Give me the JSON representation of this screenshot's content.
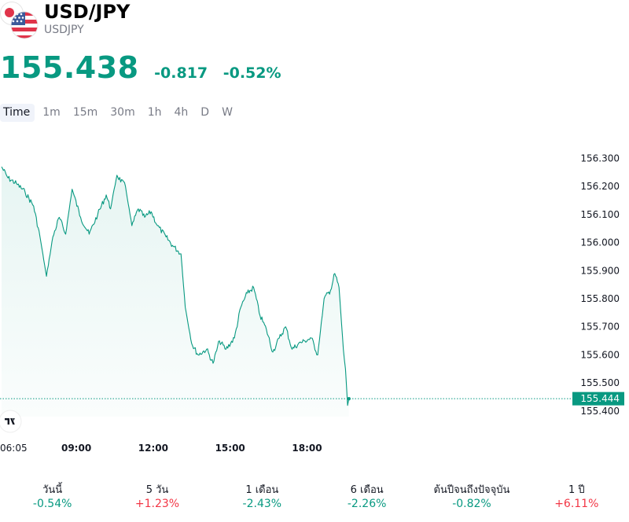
{
  "header": {
    "title": "USD/JPY",
    "symbol": "USDJPY",
    "price": "155.438",
    "change": "-0.817",
    "change_percent": "-0.52%"
  },
  "colors": {
    "accent_green": "#089981",
    "negative_red": "#f23645",
    "text": "#131722",
    "muted": "#787b86"
  },
  "tabs": [
    {
      "label": "Time",
      "active": true
    },
    {
      "label": "1m"
    },
    {
      "label": "15m"
    },
    {
      "label": "30m"
    },
    {
      "label": "1h"
    },
    {
      "label": "4h"
    },
    {
      "label": "D"
    },
    {
      "label": "W"
    }
  ],
  "chart_data": {
    "type": "area",
    "x_ticks": [
      "06:05",
      "09:00",
      "12:00",
      "15:00",
      "18:00"
    ],
    "y_ticks": [
      "156.300",
      "156.200",
      "156.100",
      "156.000",
      "155.900",
      "155.800",
      "155.700",
      "155.600",
      "155.500",
      "155.400"
    ],
    "ylim": [
      155.38,
      156.36
    ],
    "current_price_label": "155.444",
    "current_price": 155.444,
    "time_range": [
      "06:05",
      "20:30"
    ],
    "line_color": "#089981",
    "grid": false,
    "series": [
      {
        "points": [
          [
            "06:05",
            156.27
          ],
          [
            "06:20",
            156.23
          ],
          [
            "06:40",
            156.21
          ],
          [
            "07:00",
            156.18
          ],
          [
            "07:20",
            156.13
          ],
          [
            "07:35",
            156.02
          ],
          [
            "07:50",
            155.88
          ],
          [
            "08:05",
            156.02
          ],
          [
            "08:20",
            156.09
          ],
          [
            "08:35",
            156.03
          ],
          [
            "08:50",
            156.19
          ],
          [
            "09:10",
            156.09
          ],
          [
            "09:30",
            156.03
          ],
          [
            "09:50",
            156.1
          ],
          [
            "10:10",
            156.17
          ],
          [
            "10:20",
            156.12
          ],
          [
            "10:35",
            156.24
          ],
          [
            "10:55",
            156.2
          ],
          [
            "11:10",
            156.06
          ],
          [
            "11:25",
            156.12
          ],
          [
            "11:40",
            156.09
          ],
          [
            "11:55",
            156.11
          ],
          [
            "12:10",
            156.06
          ],
          [
            "12:30",
            156.02
          ],
          [
            "12:45",
            155.99
          ],
          [
            "13:05",
            155.96
          ],
          [
            "13:15",
            155.77
          ],
          [
            "13:30",
            155.64
          ],
          [
            "13:45",
            155.6
          ],
          [
            "14:05",
            155.62
          ],
          [
            "14:20",
            155.57
          ],
          [
            "14:35",
            155.65
          ],
          [
            "14:50",
            155.62
          ],
          [
            "15:10",
            155.66
          ],
          [
            "15:25",
            155.77
          ],
          [
            "15:40",
            155.82
          ],
          [
            "15:55",
            155.84
          ],
          [
            "16:10",
            155.74
          ],
          [
            "16:25",
            155.69
          ],
          [
            "16:40",
            155.61
          ],
          [
            "16:55",
            155.66
          ],
          [
            "17:10",
            155.7
          ],
          [
            "17:25",
            155.62
          ],
          [
            "17:40",
            155.64
          ],
          [
            "17:55",
            155.65
          ],
          [
            "18:10",
            155.66
          ],
          [
            "18:25",
            155.6
          ],
          [
            "18:40",
            155.8
          ],
          [
            "18:55",
            155.83
          ],
          [
            "19:05",
            155.89
          ],
          [
            "19:15",
            155.84
          ],
          [
            "19:25",
            155.62
          ],
          [
            "19:30",
            155.55
          ],
          [
            "19:35",
            155.42
          ],
          [
            "19:38",
            155.444
          ]
        ]
      }
    ]
  },
  "periods": [
    {
      "label": "วันนี้",
      "value": "-0.54%",
      "direction": "down"
    },
    {
      "label": "5 วัน",
      "value": "+1.23%",
      "direction": "up"
    },
    {
      "label": "1 เดือน",
      "value": "-2.43%",
      "direction": "down"
    },
    {
      "label": "6 เดือน",
      "value": "-2.26%",
      "direction": "down"
    },
    {
      "label": "ต้นปีจนถึงปัจจุบัน",
      "value": "-0.82%",
      "direction": "down"
    },
    {
      "label": "1 ปี",
      "value": "+6.11%",
      "direction": "up"
    }
  ]
}
